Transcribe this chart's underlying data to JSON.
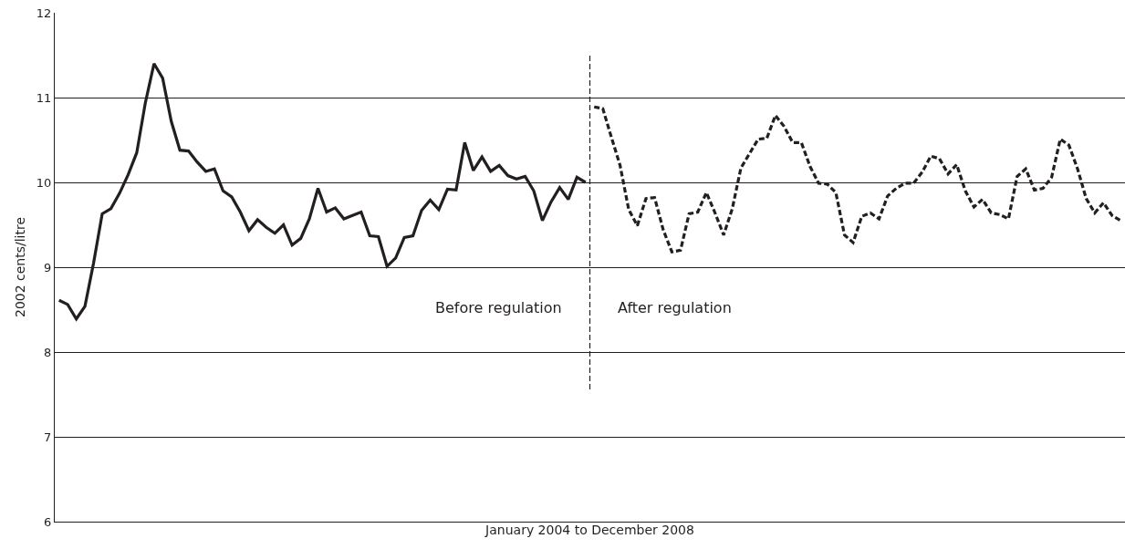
{
  "chart_data": {
    "type": "line",
    "xlabel": "January 2004 to December 2008",
    "ylabel": "2002 cents/litre",
    "ylim": [
      6,
      12
    ],
    "yticks": [
      6,
      7,
      8,
      9,
      10,
      11,
      12
    ],
    "grid": "y",
    "tick_labels": "y",
    "marker": "none",
    "categories": [
      null,
      null,
      null,
      null,
      null,
      null,
      null,
      null,
      null,
      null,
      null,
      null,
      null,
      null,
      null,
      null,
      null,
      null,
      null,
      null,
      null,
      null,
      null,
      null,
      null,
      null,
      null,
      null,
      null,
      null,
      null,
      null,
      null,
      null,
      null,
      null,
      null,
      null,
      null,
      null,
      null,
      null,
      null,
      null,
      null,
      null,
      null,
      null,
      null,
      null,
      null,
      null,
      null,
      null,
      null,
      null,
      null,
      null,
      null,
      null,
      null,
      null,
      null,
      null,
      null,
      null,
      null,
      null,
      null,
      null,
      null,
      null,
      null,
      null,
      null,
      null,
      null,
      null,
      null,
      null,
      null,
      null,
      null,
      null,
      null,
      null,
      null,
      null,
      null,
      null,
      null,
      null,
      null,
      null,
      null,
      null,
      null,
      null,
      null,
      null,
      null,
      null,
      null,
      null,
      null,
      null,
      null,
      null,
      null,
      null,
      null,
      null,
      null,
      null,
      null,
      null,
      null,
      null,
      null,
      null,
      null,
      null,
      null,
      null
    ],
    "series": [
      {
        "color": "#231f20",
        "line_style": "solid",
        "values": [
          8.61,
          8.56,
          8.39,
          8.54,
          9.05,
          9.63,
          9.69,
          9.87,
          10.09,
          10.35,
          10.94,
          11.4,
          11.23,
          10.72,
          10.38,
          10.37,
          10.24,
          10.13,
          10.16,
          9.9,
          9.83,
          9.65,
          9.43,
          9.56,
          9.47,
          9.4,
          9.5,
          9.26,
          9.34,
          9.57,
          9.93,
          9.65,
          9.7,
          9.57,
          9.61,
          9.65,
          9.37,
          9.36,
          9.01,
          9.11,
          9.35,
          9.37,
          9.67,
          9.79,
          9.68,
          9.92,
          9.91,
          10.47,
          10.14,
          10.3,
          10.13,
          10.2,
          10.08,
          10.04,
          10.07,
          9.9,
          9.55,
          9.77,
          9.94,
          9.8,
          10.06,
          10,
          null,
          null,
          null,
          null,
          null,
          null,
          null,
          null,
          null,
          null,
          null,
          null,
          null,
          null,
          null,
          null,
          null,
          null,
          null,
          null,
          null,
          null,
          null,
          null,
          null,
          null,
          null,
          null,
          null,
          null,
          null,
          null,
          null,
          null,
          null,
          null,
          null,
          null,
          null,
          null,
          null,
          null,
          null,
          null,
          null,
          null,
          null,
          null,
          null,
          null,
          null,
          null,
          null,
          null,
          null,
          null,
          null,
          null,
          null,
          null,
          null,
          null
        ]
      },
      {
        "color": "#231f20",
        "line_style": "dashed",
        "values": [
          null,
          null,
          null,
          null,
          null,
          null,
          null,
          null,
          null,
          null,
          null,
          null,
          null,
          null,
          null,
          null,
          null,
          null,
          null,
          null,
          null,
          null,
          null,
          null,
          null,
          null,
          null,
          null,
          null,
          null,
          null,
          null,
          null,
          null,
          null,
          null,
          null,
          null,
          null,
          null,
          null,
          null,
          null,
          null,
          null,
          null,
          null,
          null,
          null,
          null,
          null,
          null,
          null,
          null,
          null,
          null,
          null,
          null,
          null,
          null,
          null,
          null,
          10.89,
          10.87,
          10.53,
          10.2,
          9.68,
          9.49,
          9.81,
          9.82,
          9.44,
          9.18,
          9.2,
          9.63,
          9.65,
          9.88,
          9.64,
          9.38,
          9.69,
          10.17,
          10.34,
          10.51,
          10.52,
          10.79,
          10.66,
          10.47,
          10.47,
          10.19,
          9.99,
          9.98,
          9.88,
          9.38,
          9.29,
          9.6,
          9.64,
          9.57,
          9.84,
          9.93,
          9.99,
          9.99,
          10.12,
          10.31,
          10.28,
          10.1,
          10.21,
          9.9,
          9.71,
          9.8,
          9.64,
          9.62,
          9.57,
          10.07,
          10.16,
          9.91,
          9.93,
          10.06,
          10.51,
          10.44,
          10.16,
          9.81,
          9.64,
          9.76,
          9.61,
          9.55
        ]
      }
    ],
    "ref_lines": [
      {
        "axis": "x",
        "color": "#231f20",
        "line_style": "dashed"
      }
    ],
    "annotations": [
      "Before regulation",
      "After regulation"
    ]
  }
}
